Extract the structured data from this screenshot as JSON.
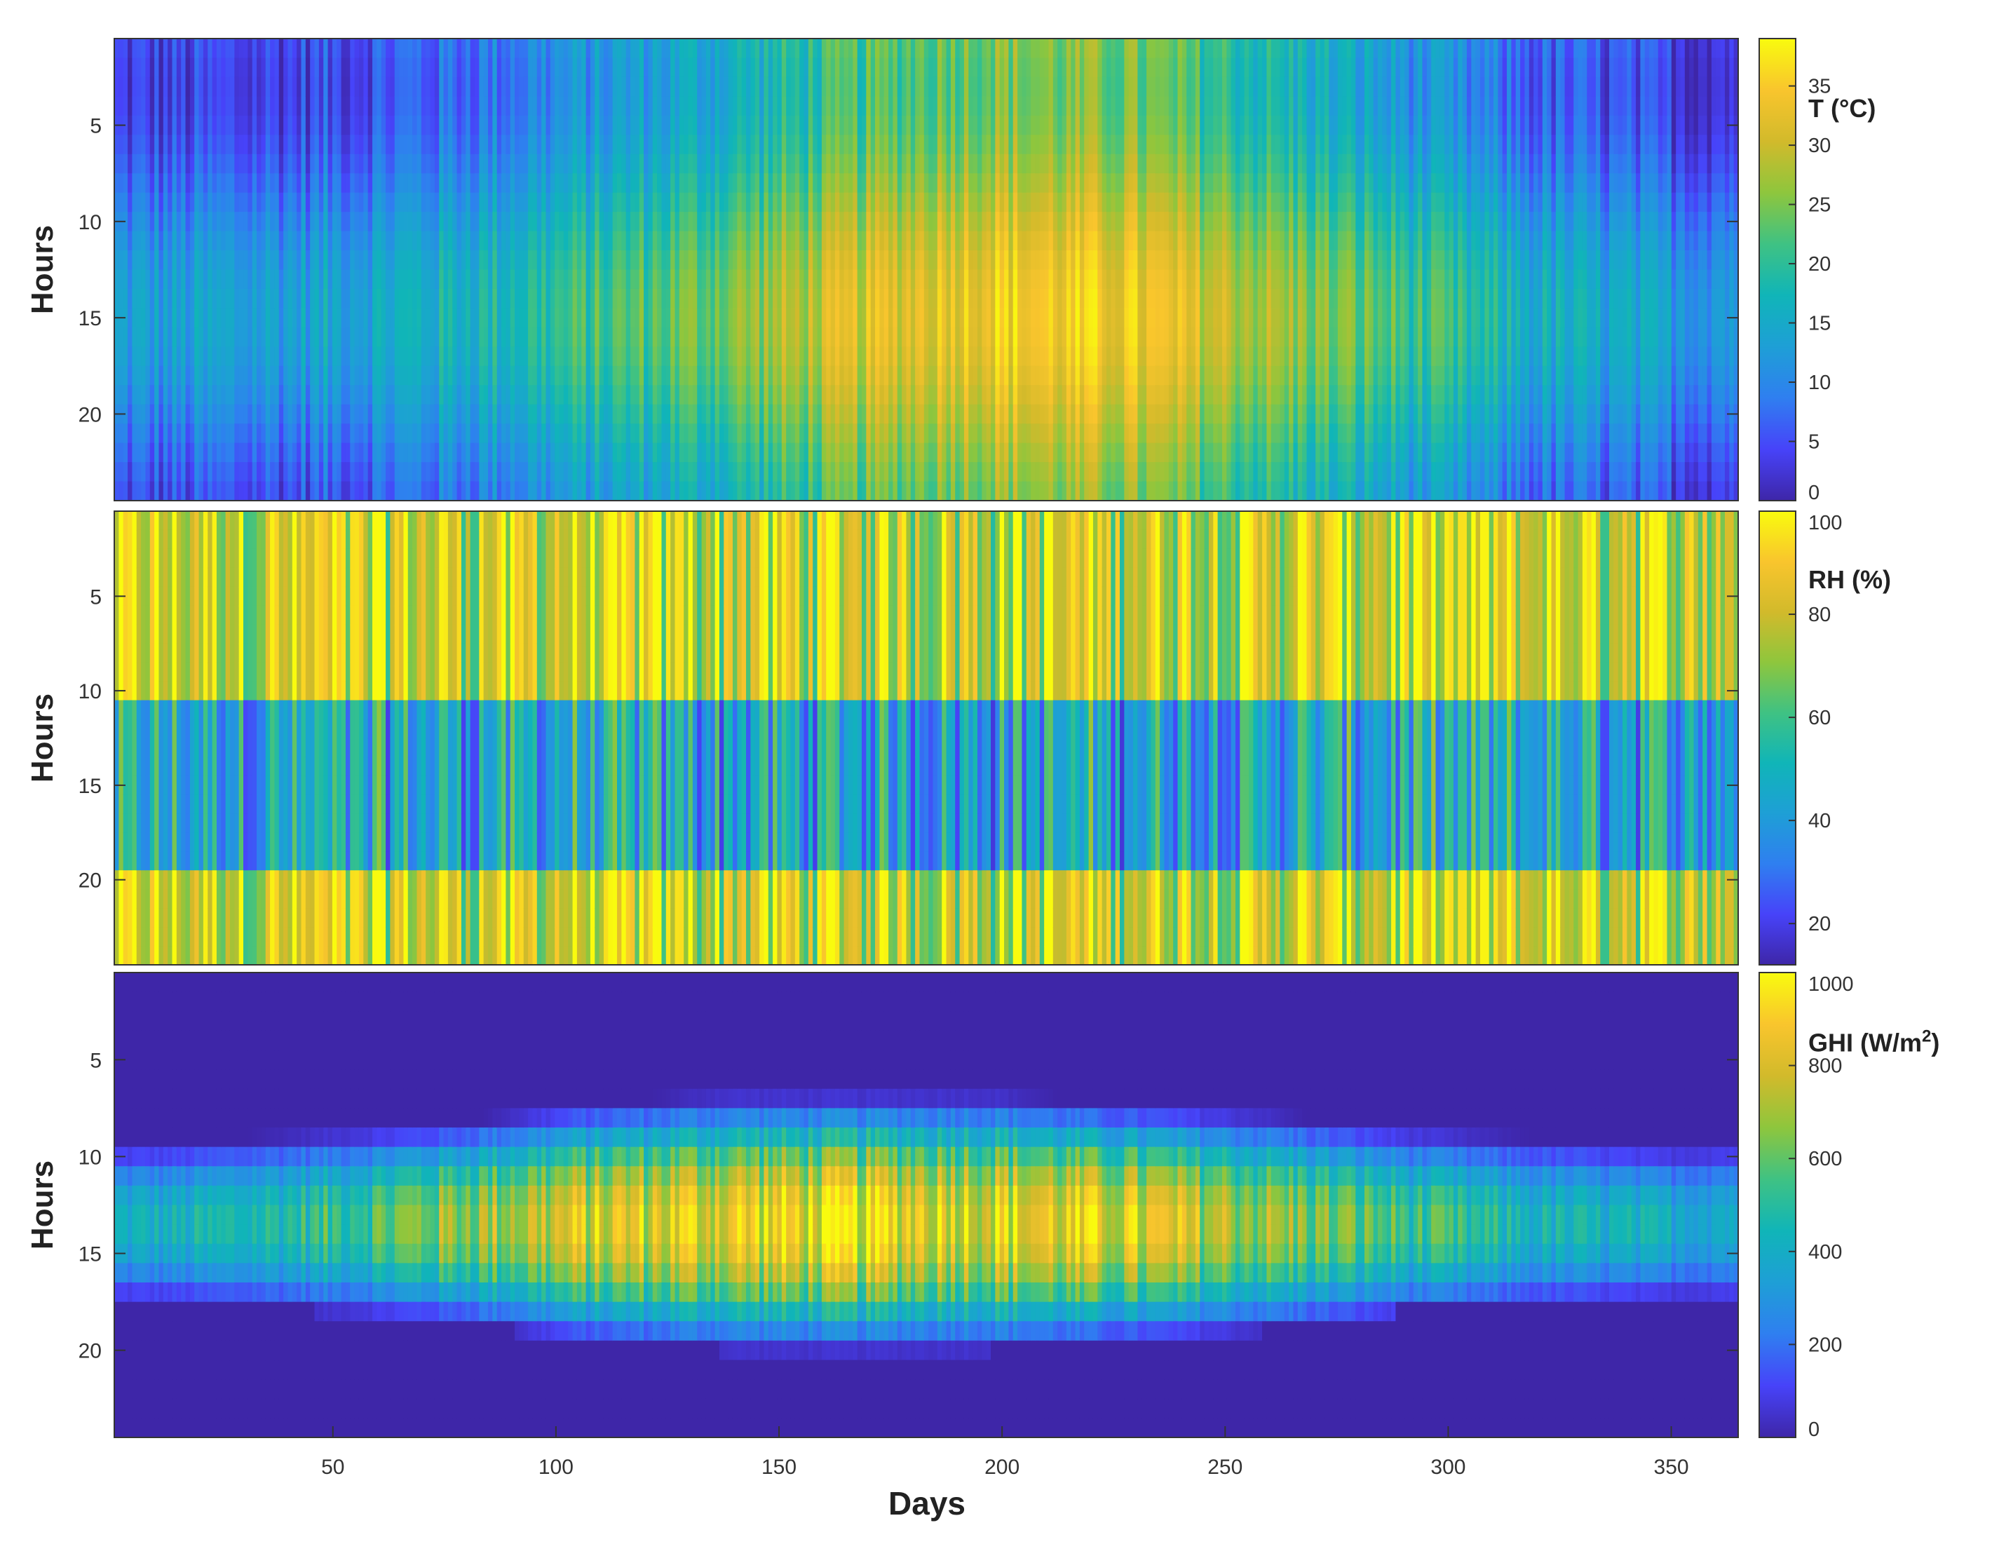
{
  "chart_data": {
    "type": "heatmap",
    "xlabel": "Days",
    "xlim": [
      1,
      365
    ],
    "xticks": [
      50,
      100,
      150,
      200,
      250,
      300,
      350
    ],
    "colormap": "parula",
    "colormap_stops": [
      "#3e26a8",
      "#4743f9",
      "#2f7ff0",
      "#1e9fd6",
      "#10b5b8",
      "#3fc283",
      "#8ec63d",
      "#d2ba2b",
      "#f9c52d",
      "#f9fb0e"
    ],
    "panels": [
      {
        "id": "temperature",
        "ylabel": "Hours",
        "ylim": [
          0.5,
          24.5
        ],
        "yticks": [
          5,
          10,
          15,
          20
        ],
        "colorbar_label_prefix": "T (°C)",
        "colorbar_superscript": "",
        "colorbar_label_suffix": "",
        "clim": [
          0,
          39
        ],
        "colorbar_ticks": [
          0,
          5,
          10,
          15,
          20,
          25,
          30,
          35
        ],
        "daily_mean_by_month": [
          8,
          9,
          12,
          16,
          20,
          26,
          30,
          29,
          23,
          17,
          11,
          8
        ],
        "diurnal_amplitude": 5,
        "peak_hour": 15
      },
      {
        "id": "relative-humidity",
        "ylabel": "Hours",
        "ylim": [
          0.5,
          24.5
        ],
        "yticks": [
          5,
          10,
          15,
          20
        ],
        "colorbar_label_prefix": "RH (%)",
        "colorbar_superscript": "",
        "colorbar_label_suffix": "",
        "clim": [
          12,
          100
        ],
        "colorbar_ticks": [
          20,
          40,
          60,
          80,
          100
        ],
        "night_level": 82,
        "midday_level": 45,
        "midday_hours": [
          11,
          19
        ]
      },
      {
        "id": "global-horizontal-irradiance",
        "ylabel": "Hours",
        "ylim": [
          0.5,
          24.5
        ],
        "yticks": [
          5,
          10,
          15,
          20
        ],
        "colorbar_label_prefix": "GHI (W/m",
        "colorbar_superscript": "2",
        "colorbar_label_suffix": ")",
        "clim": [
          0,
          1000
        ],
        "colorbar_ticks": [
          0,
          200,
          400,
          600,
          800,
          1000
        ],
        "noon_hour": 13.5,
        "peak_by_month": [
          420,
          520,
          680,
          800,
          860,
          880,
          860,
          820,
          700,
          560,
          440,
          400
        ],
        "sunrise_by_month": [
          9,
          8.5,
          8,
          7,
          6.5,
          6.5,
          6.5,
          7,
          7.5,
          8,
          8.5,
          9
        ],
        "sunset_by_month": [
          17.5,
          18,
          18.5,
          19.5,
          20,
          20,
          20,
          19.5,
          19,
          18,
          17.5,
          17
        ]
      }
    ]
  }
}
